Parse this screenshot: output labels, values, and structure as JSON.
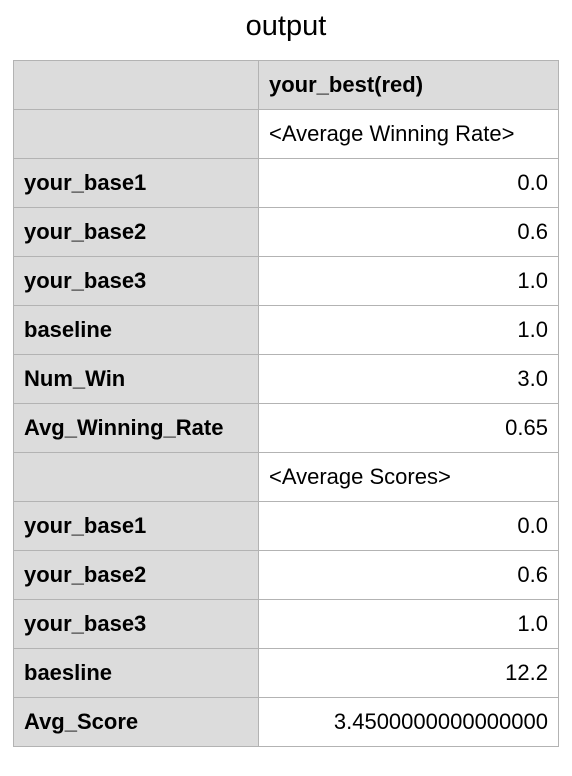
{
  "title": "output",
  "table": {
    "column_header": "your_best(red)",
    "sections": [
      {
        "label": "<Average Winning Rate>",
        "rows": [
          {
            "name": "your_base1",
            "value": "0.0"
          },
          {
            "name": "your_base2",
            "value": "0.6"
          },
          {
            "name": "your_base3",
            "value": "1.0"
          },
          {
            "name": "baseline",
            "value": "1.0"
          },
          {
            "name": "Num_Win",
            "value": "3.0"
          },
          {
            "name": "Avg_Winning_Rate",
            "value": "0.65"
          }
        ]
      },
      {
        "label": "<Average Scores>",
        "rows": [
          {
            "name": "your_base1",
            "value": "0.0"
          },
          {
            "name": "your_base2",
            "value": "0.6"
          },
          {
            "name": "your_base3",
            "value": "1.0"
          },
          {
            "name": "baesline",
            "value": "12.2"
          },
          {
            "name": "Avg_Score",
            "value": "3.4500000000000000"
          }
        ]
      }
    ]
  }
}
